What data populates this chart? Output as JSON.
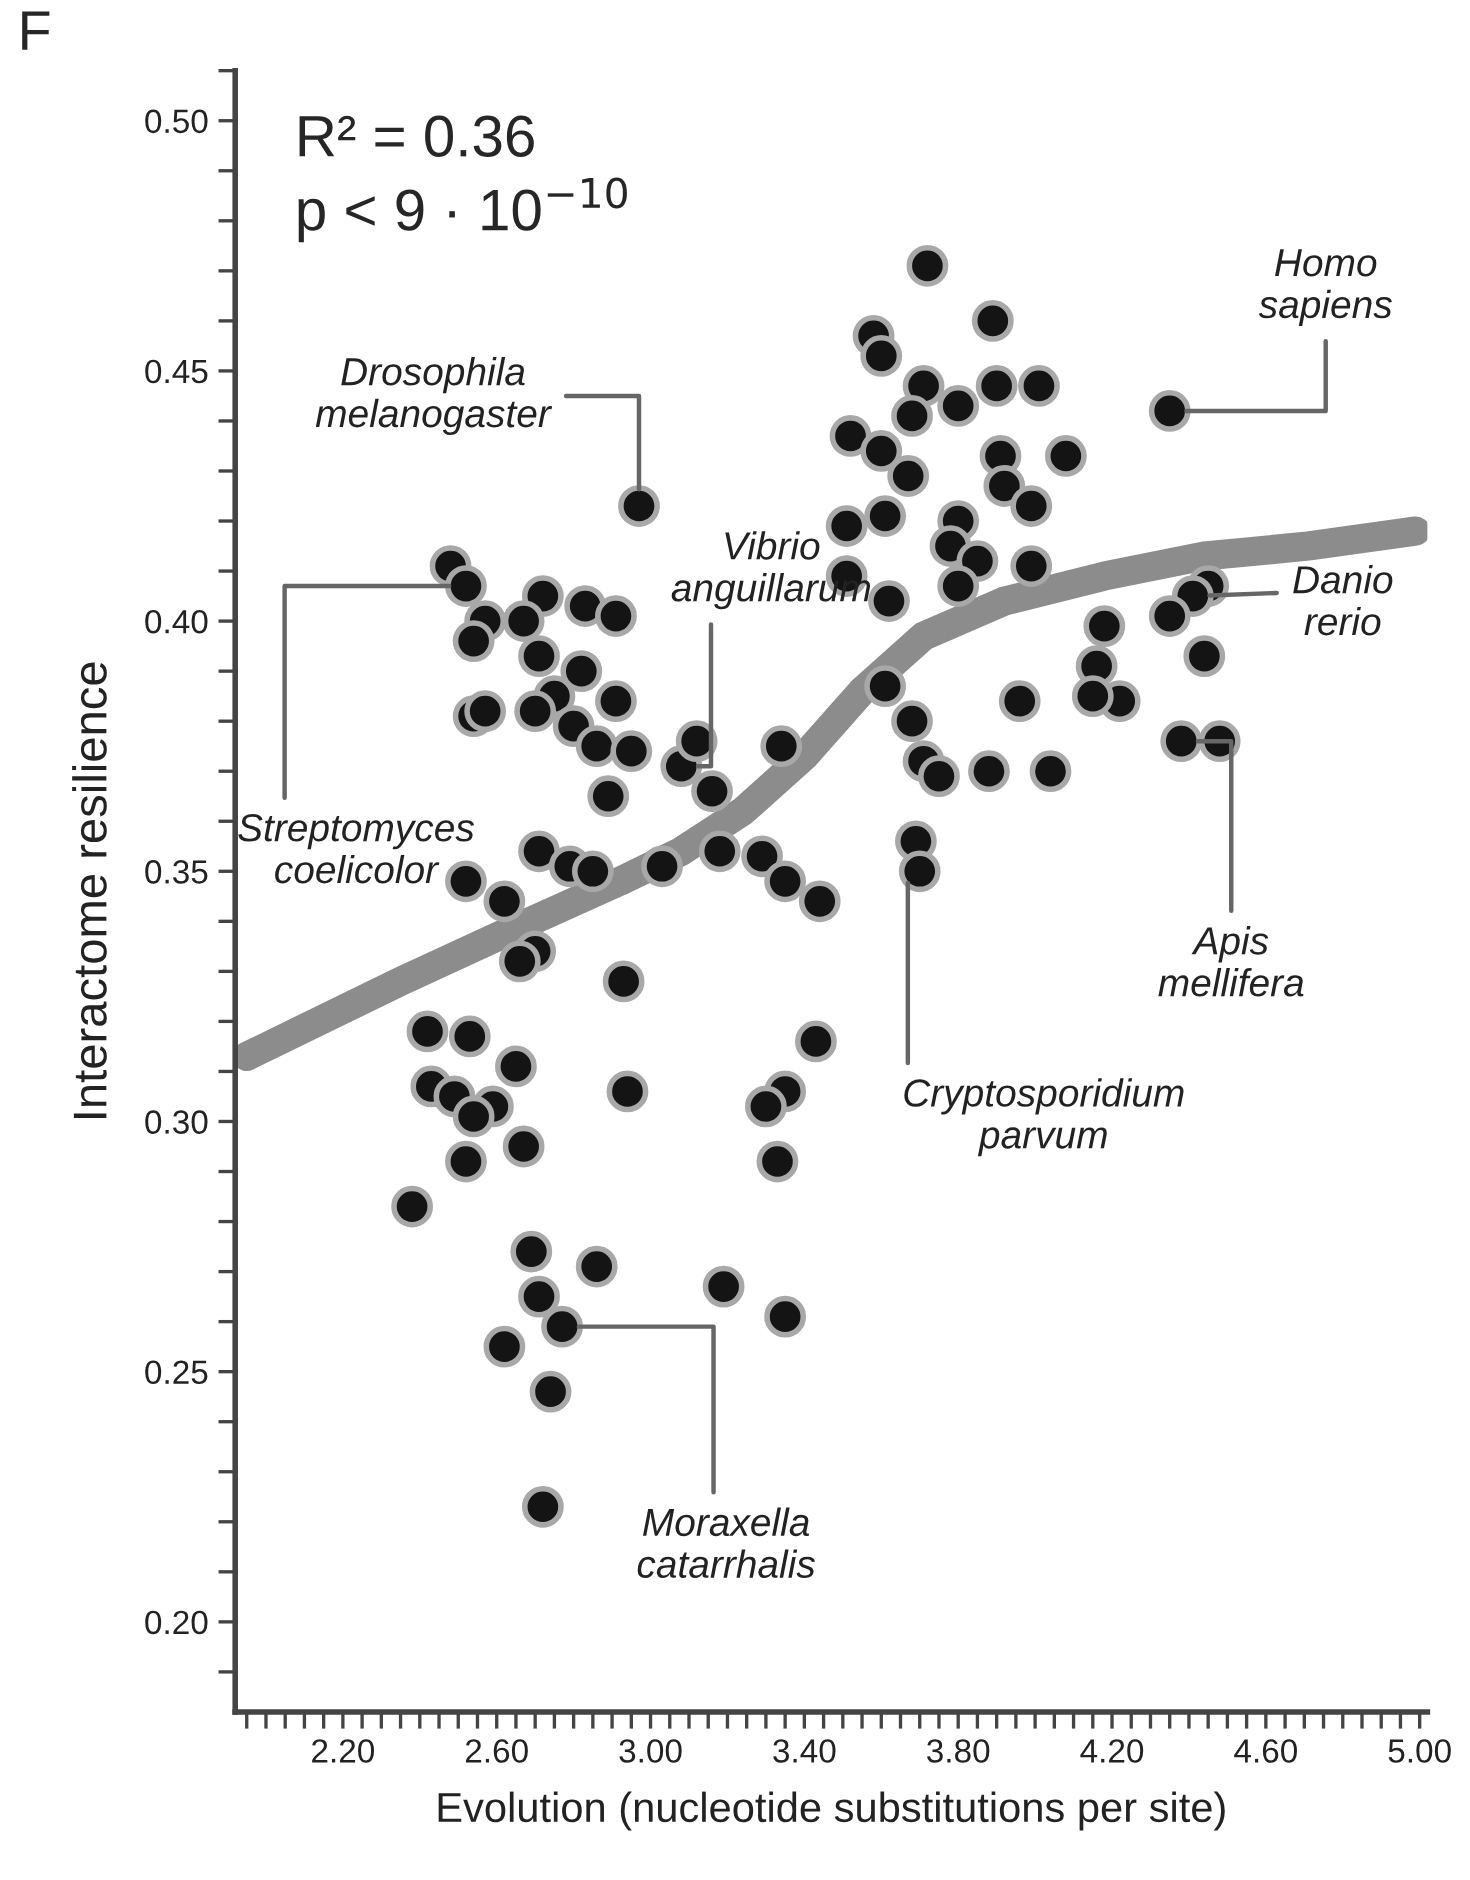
{
  "chart_data": {
    "type": "scatter",
    "xlabel": "Evolution (nucleotide substitutions per site)",
    "ylabel": "Interactome resilience",
    "line_style": "solid",
    "xlim": [
      1.92,
      5.02
    ],
    "ylim": [
      0.182,
      0.51
    ],
    "xticks": [
      {
        "value": 1.95,
        "label": null
      },
      {
        "value": 2.0,
        "label": null
      },
      {
        "value": 2.05,
        "label": null
      },
      {
        "value": 2.1,
        "label": null
      },
      {
        "value": 2.15,
        "label": null
      },
      {
        "value": 2.2,
        "label": "2.20"
      },
      {
        "value": 2.25,
        "label": null
      },
      {
        "value": 2.3,
        "label": null
      },
      {
        "value": 2.35,
        "label": null
      },
      {
        "value": 2.4,
        "label": null
      },
      {
        "value": 2.45,
        "label": null
      },
      {
        "value": 2.5,
        "label": null
      },
      {
        "value": 2.55,
        "label": null
      },
      {
        "value": 2.6,
        "label": "2.60"
      },
      {
        "value": 2.65,
        "label": null
      },
      {
        "value": 2.7,
        "label": null
      },
      {
        "value": 2.75,
        "label": null
      },
      {
        "value": 2.8,
        "label": null
      },
      {
        "value": 2.85,
        "label": null
      },
      {
        "value": 2.9,
        "label": null
      },
      {
        "value": 2.95,
        "label": null
      },
      {
        "value": 3.0,
        "label": "3.00"
      },
      {
        "value": 3.05,
        "label": null
      },
      {
        "value": 3.1,
        "label": null
      },
      {
        "value": 3.15,
        "label": null
      },
      {
        "value": 3.2,
        "label": null
      },
      {
        "value": 3.25,
        "label": null
      },
      {
        "value": 3.3,
        "label": null
      },
      {
        "value": 3.35,
        "label": null
      },
      {
        "value": 3.4,
        "label": "3.40"
      },
      {
        "value": 3.45,
        "label": null
      },
      {
        "value": 3.5,
        "label": null
      },
      {
        "value": 3.55,
        "label": null
      },
      {
        "value": 3.6,
        "label": null
      },
      {
        "value": 3.65,
        "label": null
      },
      {
        "value": 3.7,
        "label": null
      },
      {
        "value": 3.75,
        "label": null
      },
      {
        "value": 3.8,
        "label": "3.80"
      },
      {
        "value": 3.85,
        "label": null
      },
      {
        "value": 3.9,
        "label": null
      },
      {
        "value": 3.95,
        "label": null
      },
      {
        "value": 4.0,
        "label": null
      },
      {
        "value": 4.05,
        "label": null
      },
      {
        "value": 4.1,
        "label": null
      },
      {
        "value": 4.15,
        "label": null
      },
      {
        "value": 4.2,
        "label": "4.20"
      },
      {
        "value": 4.25,
        "label": null
      },
      {
        "value": 4.3,
        "label": null
      },
      {
        "value": 4.35,
        "label": null
      },
      {
        "value": 4.4,
        "label": null
      },
      {
        "value": 4.45,
        "label": null
      },
      {
        "value": 4.5,
        "label": null
      },
      {
        "value": 4.55,
        "label": null
      },
      {
        "value": 4.6,
        "label": "4.60"
      },
      {
        "value": 4.65,
        "label": null
      },
      {
        "value": 4.7,
        "label": null
      },
      {
        "value": 4.75,
        "label": null
      },
      {
        "value": 4.8,
        "label": null
      },
      {
        "value": 4.85,
        "label": null
      },
      {
        "value": 4.9,
        "label": null
      },
      {
        "value": 4.95,
        "label": null
      },
      {
        "value": 5.0,
        "label": "5.00"
      }
    ],
    "yticks": [
      {
        "value": 0.19,
        "label": null
      },
      {
        "value": 0.2,
        "label": "0.20"
      },
      {
        "value": 0.21,
        "label": null
      },
      {
        "value": 0.22,
        "label": null
      },
      {
        "value": 0.23,
        "label": null
      },
      {
        "value": 0.24,
        "label": null
      },
      {
        "value": 0.25,
        "label": "0.25"
      },
      {
        "value": 0.26,
        "label": null
      },
      {
        "value": 0.27,
        "label": null
      },
      {
        "value": 0.28,
        "label": null
      },
      {
        "value": 0.29,
        "label": null
      },
      {
        "value": 0.3,
        "label": "0.30"
      },
      {
        "value": 0.31,
        "label": null
      },
      {
        "value": 0.32,
        "label": null
      },
      {
        "value": 0.33,
        "label": null
      },
      {
        "value": 0.34,
        "label": null
      },
      {
        "value": 0.35,
        "label": "0.35"
      },
      {
        "value": 0.36,
        "label": null
      },
      {
        "value": 0.37,
        "label": null
      },
      {
        "value": 0.38,
        "label": null
      },
      {
        "value": 0.39,
        "label": null
      },
      {
        "value": 0.4,
        "label": "0.40"
      },
      {
        "value": 0.41,
        "label": null
      },
      {
        "value": 0.42,
        "label": null
      },
      {
        "value": 0.43,
        "label": null
      },
      {
        "value": 0.44,
        "label": null
      },
      {
        "value": 0.45,
        "label": "0.45"
      },
      {
        "value": 0.46,
        "label": null
      },
      {
        "value": 0.47,
        "label": null
      },
      {
        "value": 0.48,
        "label": null
      },
      {
        "value": 0.49,
        "label": null
      },
      {
        "value": 0.5,
        "label": "0.50"
      },
      {
        "value": 0.51,
        "label": null
      }
    ],
    "series": [
      {
        "type": "line",
        "marker": "none",
        "color": "#8c8c8c",
        "x": [
          1.95,
          2.35,
          2.66,
          2.92,
          3.08,
          3.24,
          3.4,
          3.55,
          3.71,
          3.92,
          4.18,
          4.44,
          4.71,
          4.99
        ],
        "values": [
          0.313,
          0.328,
          0.339,
          0.348,
          0.354,
          0.362,
          0.373,
          0.386,
          0.397,
          0.404,
          0.409,
          0.413,
          0.415,
          0.418
        ]
      },
      {
        "marker": "circle",
        "color": "#141414",
        "x": [
          2.48,
          2.52,
          2.57,
          2.54,
          2.72,
          2.67,
          2.83,
          2.91,
          2.71,
          2.82,
          2.75,
          2.7,
          2.91,
          2.54,
          2.57,
          2.8,
          2.86,
          2.95,
          2.89,
          3.08,
          3.12,
          3.16,
          3.34,
          2.71,
          2.79,
          2.85,
          3.03,
          3.18,
          3.29,
          3.35,
          3.44,
          2.52,
          2.62,
          3.69,
          3.7,
          2.7,
          2.66,
          2.93,
          2.42,
          2.53,
          3.43,
          2.65,
          2.43,
          2.49,
          2.59,
          2.54,
          2.94,
          3.35,
          3.3,
          2.67,
          2.52,
          3.33,
          2.38,
          2.69,
          2.86,
          3.19,
          2.71,
          3.35,
          2.77,
          2.62,
          2.74,
          2.72,
          3.72,
          3.89,
          3.58,
          3.6,
          3.71,
          3.9,
          4.01,
          3.8,
          3.68,
          4.35,
          3.52,
          3.6,
          4.08,
          3.91,
          3.67,
          3.92,
          3.99,
          3.51,
          3.61,
          3.8,
          3.78,
          3.85,
          3.99,
          3.51,
          3.62,
          3.8,
          4.45,
          4.41,
          4.35,
          4.18,
          4.16,
          4.22,
          4.15,
          4.44,
          3.61,
          3.96,
          3.68,
          4.38,
          4.48,
          3.71,
          3.75,
          3.88,
          4.04,
          2.97
        ],
        "values": [
          0.411,
          0.407,
          0.4,
          0.396,
          0.405,
          0.4,
          0.403,
          0.401,
          0.393,
          0.39,
          0.385,
          0.382,
          0.384,
          0.381,
          0.382,
          0.379,
          0.375,
          0.374,
          0.365,
          0.371,
          0.376,
          0.366,
          0.375,
          0.354,
          0.351,
          0.35,
          0.351,
          0.354,
          0.353,
          0.348,
          0.344,
          0.348,
          0.344,
          0.356,
          0.35,
          0.334,
          0.332,
          0.328,
          0.318,
          0.317,
          0.316,
          0.311,
          0.307,
          0.305,
          0.303,
          0.301,
          0.306,
          0.306,
          0.303,
          0.295,
          0.292,
          0.292,
          0.283,
          0.274,
          0.271,
          0.267,
          0.265,
          0.261,
          0.259,
          0.255,
          0.246,
          0.223,
          0.471,
          0.46,
          0.457,
          0.453,
          0.447,
          0.447,
          0.447,
          0.443,
          0.441,
          0.442,
          0.437,
          0.434,
          0.433,
          0.433,
          0.429,
          0.427,
          0.423,
          0.419,
          0.421,
          0.42,
          0.415,
          0.412,
          0.411,
          0.409,
          0.404,
          0.407,
          0.407,
          0.405,
          0.401,
          0.399,
          0.391,
          0.384,
          0.385,
          0.393,
          0.387,
          0.384,
          0.38,
          0.376,
          0.376,
          0.372,
          0.369,
          0.37,
          0.37,
          0.423
        ]
      }
    ],
    "annotations": [
      "F",
      "R² = 0.36",
      "p < 9 · 10$^{−10}$",
      {
        "text": "Homo\nsapiens",
        "x": 4.35,
        "y": 0.442
      },
      {
        "text": "Drosophila\nmelanogaster",
        "x": 2.97,
        "y": 0.423
      },
      {
        "text": "Vibrio\nanguillarum",
        "x": 3.08,
        "y": 0.371
      },
      {
        "text": "Streptomyces\ncoelicolor",
        "x": 2.52,
        "y": 0.407
      },
      {
        "text": "Danio\nrerio",
        "x": 4.41,
        "y": 0.405
      },
      {
        "text": "Apis\nmellifera",
        "x": 4.38,
        "y": 0.376
      },
      {
        "text": "Cryptosporidium\nparvum",
        "x": 3.7,
        "y": 0.35
      },
      {
        "text": "Moraxella\ncatarrhalis",
        "x": 2.77,
        "y": 0.259
      }
    ]
  }
}
